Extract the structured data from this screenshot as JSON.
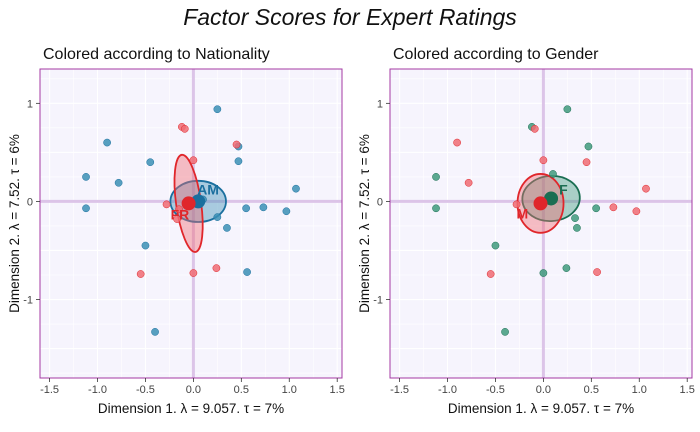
{
  "figure_title": "Factor Scores for Expert Ratings",
  "chart_data": [
    {
      "type": "scatter",
      "title": "Colored according to Nationality",
      "xlabel": "Dimension 1.   λ = 9.057.   τ = 7%",
      "ylabel": "Dimension 2.   λ = 7.52.   τ = 6%",
      "xlim": [
        -1.6,
        1.55
      ],
      "ylim": [
        -1.8,
        1.35
      ],
      "xticks": [
        "-1.5",
        "-1.0",
        "-0.5",
        "0.0",
        "0.5",
        "1.0",
        "1.5"
      ],
      "yticks": [
        "1",
        "0",
        "-1"
      ],
      "grid": true,
      "groups": [
        {
          "label": "AM",
          "color": "#1a6f9e",
          "fill": "#3b8fb5",
          "mean": [
            0.05,
            0.0
          ],
          "ellipse": {
            "cx": 0.05,
            "cy": 0.0,
            "rx": 0.29,
            "ry": 0.21,
            "angle": 0
          },
          "points": [
            [
              -0.45,
              0.4
            ],
            [
              -0.9,
              0.6
            ],
            [
              -1.12,
              0.25
            ],
            [
              -0.78,
              0.19
            ],
            [
              -1.12,
              -0.07
            ],
            [
              -0.5,
              -0.45
            ],
            [
              -0.4,
              -1.33
            ],
            [
              0.25,
              0.94
            ],
            [
              0.47,
              0.41
            ],
            [
              0.47,
              0.56
            ],
            [
              0.55,
              -0.07
            ],
            [
              0.73,
              -0.06
            ],
            [
              1.07,
              0.13
            ],
            [
              0.97,
              -0.1
            ],
            [
              0.25,
              -0.16
            ],
            [
              0.35,
              -0.27
            ],
            [
              0.56,
              -0.72
            ],
            [
              0.1,
              0.02
            ]
          ]
        },
        {
          "label": "FR",
          "color": "#e0262b",
          "fill": "#f06b73",
          "mean": [
            -0.05,
            -0.02
          ],
          "ellipse": {
            "cx": -0.05,
            "cy": -0.02,
            "rx": 0.13,
            "ry": 0.5,
            "angle": -8
          },
          "points": [
            [
              -0.12,
              0.76
            ],
            [
              -0.09,
              0.74
            ],
            [
              0.0,
              0.42
            ],
            [
              0.45,
              0.58
            ],
            [
              -0.17,
              -0.18
            ],
            [
              -0.28,
              -0.03
            ],
            [
              -0.55,
              -0.74
            ],
            [
              0.0,
              -0.73
            ],
            [
              0.24,
              -0.68
            ],
            [
              -0.15,
              -0.08
            ]
          ]
        }
      ]
    },
    {
      "type": "scatter",
      "title": "Colored according to Gender",
      "xlabel": "Dimension 1.   λ = 9.057.   τ = 7%",
      "ylabel": "Dimension 2.   λ = 7.52.   τ = 6%",
      "xlim": [
        -1.6,
        1.55
      ],
      "ylim": [
        -1.8,
        1.35
      ],
      "xticks": [
        "-1.5",
        "-1.0",
        "-0.5",
        "0.0",
        "0.5",
        "1.0",
        "1.5"
      ],
      "yticks": [
        "1",
        "0",
        "-1"
      ],
      "grid": true,
      "groups": [
        {
          "label": "F",
          "color": "#1a6e52",
          "fill": "#3f9a7c",
          "mean": [
            0.08,
            0.03
          ],
          "ellipse": {
            "cx": 0.08,
            "cy": 0.03,
            "rx": 0.3,
            "ry": 0.23,
            "angle": -4
          },
          "points": [
            [
              0.25,
              0.94
            ],
            [
              -0.12,
              0.76
            ],
            [
              0.47,
              0.56
            ],
            [
              -1.12,
              0.25
            ],
            [
              -0.5,
              -0.45
            ],
            [
              -0.4,
              -1.33
            ],
            [
              0.0,
              -0.73
            ],
            [
              0.24,
              -0.68
            ],
            [
              0.1,
              0.28
            ],
            [
              0.33,
              -0.17
            ],
            [
              0.55,
              -0.07
            ],
            [
              -1.12,
              -0.07
            ],
            [
              0.35,
              -0.27
            ]
          ]
        },
        {
          "label": "M",
          "color": "#e0262b",
          "fill": "#f06b73",
          "mean": [
            -0.03,
            -0.02
          ],
          "ellipse": {
            "cx": -0.03,
            "cy": -0.02,
            "rx": 0.24,
            "ry": 0.3,
            "angle": 0
          },
          "points": [
            [
              -0.9,
              0.6
            ],
            [
              -0.78,
              0.19
            ],
            [
              -0.09,
              0.74
            ],
            [
              0.45,
              0.4
            ],
            [
              0.73,
              -0.06
            ],
            [
              1.07,
              0.13
            ],
            [
              0.97,
              -0.1
            ],
            [
              -0.55,
              -0.74
            ],
            [
              0.56,
              -0.72
            ],
            [
              -0.28,
              -0.03
            ],
            [
              0.0,
              0.42
            ]
          ]
        }
      ]
    }
  ]
}
